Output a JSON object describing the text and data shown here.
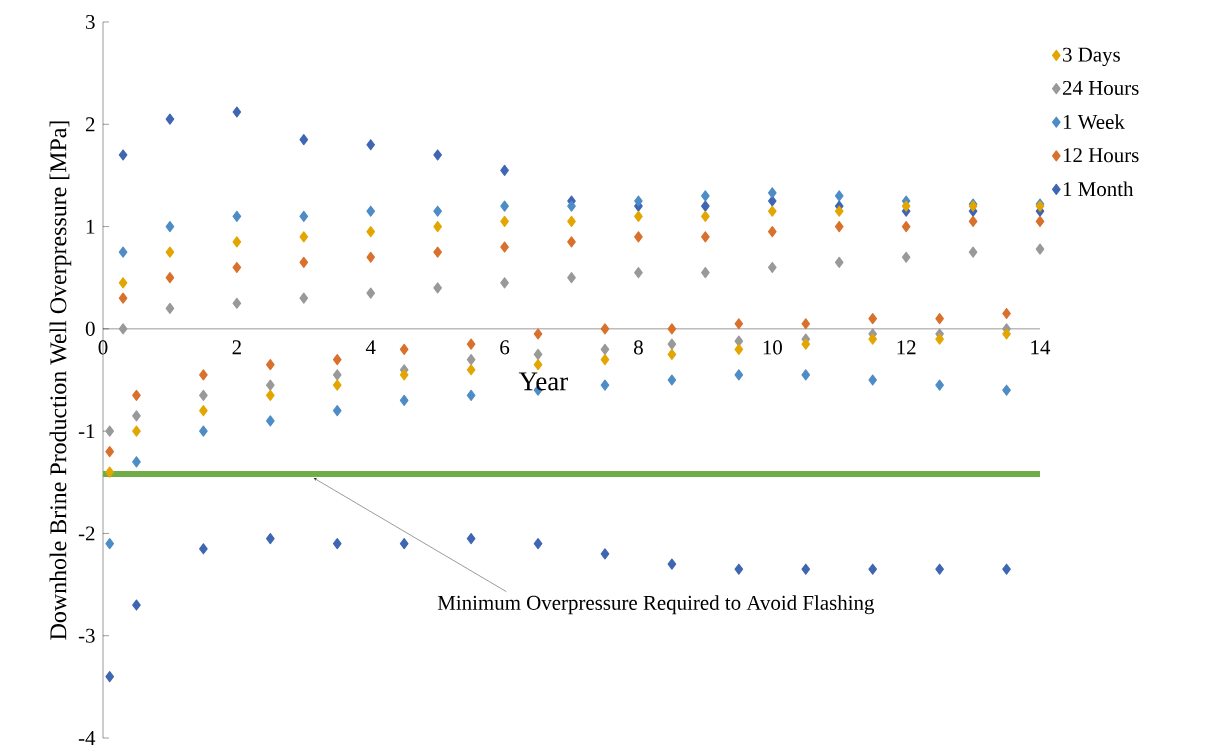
{
  "chart_data": {
    "type": "scatter",
    "xlabel": "Year",
    "ylabel": "Downhole Brine Production Well Overpressure [MPa]",
    "xlim": [
      0,
      14
    ],
    "xticks": [
      0,
      2,
      4,
      6,
      8,
      10,
      12,
      14
    ],
    "ylim": [
      -4,
      3
    ],
    "yticks": [
      -4,
      -3,
      -2,
      -1,
      0,
      1,
      2,
      3
    ],
    "grid": false,
    "legend": "right",
    "marker": "diamond",
    "series": [
      {
        "name": "3 Days",
        "color": "#e3a600",
        "x": [
          0.1,
          0.3,
          0.5,
          1,
          1.5,
          2,
          2.5,
          3,
          3.5,
          4,
          4.5,
          5,
          5.5,
          6,
          6.5,
          7,
          7.5,
          8,
          8.5,
          9,
          9.5,
          10,
          10.5,
          11,
          11.5,
          12,
          12.5,
          13,
          13.5,
          14
        ],
        "values": [
          -1.4,
          0.45,
          -1.0,
          0.75,
          -0.8,
          0.85,
          -0.65,
          0.9,
          -0.55,
          0.95,
          -0.45,
          1.0,
          -0.4,
          1.05,
          -0.35,
          1.05,
          -0.3,
          1.1,
          -0.25,
          1.1,
          -0.2,
          1.15,
          -0.15,
          1.15,
          -0.1,
          1.2,
          -0.1,
          1.2,
          -0.05,
          1.2
        ]
      },
      {
        "name": "24 Hours",
        "color": "#999999",
        "x": [
          0.1,
          0.3,
          0.5,
          1,
          1.5,
          2,
          2.5,
          3,
          3.5,
          4,
          4.5,
          5,
          5.5,
          6,
          6.5,
          7,
          7.5,
          8,
          8.5,
          9,
          9.5,
          10,
          10.5,
          11,
          11.5,
          12,
          12.5,
          13,
          13.5,
          14
        ],
        "values": [
          -1.0,
          0.0,
          -0.85,
          0.2,
          -0.65,
          0.25,
          -0.55,
          0.3,
          -0.45,
          0.35,
          -0.4,
          0.4,
          -0.3,
          0.45,
          -0.25,
          0.5,
          -0.2,
          0.55,
          -0.15,
          0.55,
          -0.12,
          0.6,
          -0.1,
          0.65,
          -0.05,
          0.7,
          -0.05,
          0.75,
          0.0,
          0.78
        ]
      },
      {
        "name": "1 Week",
        "color": "#4e8cc6",
        "x": [
          0.1,
          0.3,
          0.5,
          1,
          1.5,
          2,
          2.5,
          3,
          3.5,
          4,
          4.5,
          5,
          5.5,
          6,
          6.5,
          7,
          7.5,
          8,
          8.5,
          9,
          9.5,
          10,
          10.5,
          11,
          11.5,
          12,
          12.5,
          13,
          13.5,
          14
        ],
        "values": [
          -2.1,
          0.75,
          -1.3,
          1.0,
          -1.0,
          1.1,
          -0.9,
          1.1,
          -0.8,
          1.15,
          -0.7,
          1.15,
          -0.65,
          1.2,
          -0.6,
          1.2,
          -0.55,
          1.25,
          -0.5,
          1.3,
          -0.45,
          1.33,
          -0.45,
          1.3,
          -0.5,
          1.25,
          -0.55,
          1.22,
          -0.6,
          1.22
        ]
      },
      {
        "name": "12 Hours",
        "color": "#d9702c",
        "x": [
          0.1,
          0.3,
          0.5,
          1,
          1.5,
          2,
          2.5,
          3,
          3.5,
          4,
          4.5,
          5,
          5.5,
          6,
          6.5,
          7,
          7.5,
          8,
          8.5,
          9,
          9.5,
          10,
          10.5,
          11,
          11.5,
          12,
          12.5,
          13,
          13.5,
          14
        ],
        "values": [
          -1.2,
          0.3,
          -0.65,
          0.5,
          -0.45,
          0.6,
          -0.35,
          0.65,
          -0.3,
          0.7,
          -0.2,
          0.75,
          -0.15,
          0.8,
          -0.05,
          0.85,
          0.0,
          0.9,
          0.0,
          0.9,
          0.05,
          0.95,
          0.05,
          1.0,
          0.1,
          1.0,
          0.1,
          1.05,
          0.15,
          1.05
        ]
      },
      {
        "name": "1 Month",
        "color": "#3e66b2",
        "x": [
          0.1,
          0.3,
          0.5,
          1,
          1.5,
          2,
          2.5,
          3,
          3.5,
          4,
          4.5,
          5,
          5.5,
          6,
          6.5,
          7,
          7.5,
          8,
          8.5,
          9,
          9.5,
          10,
          10.5,
          11,
          11.5,
          12,
          12.5,
          13,
          13.5,
          14
        ],
        "values": [
          -3.4,
          1.7,
          -2.7,
          2.05,
          -2.15,
          2.12,
          -2.05,
          1.85,
          -2.1,
          1.8,
          -2.1,
          1.7,
          -2.05,
          1.55,
          -2.1,
          1.25,
          -2.2,
          1.2,
          -2.3,
          1.2,
          -2.35,
          1.25,
          -2.35,
          1.2,
          -2.35,
          1.15,
          -2.35,
          1.15,
          -2.35,
          1.15
        ]
      }
    ],
    "ref_lines": [
      {
        "axis": "y",
        "value": -1.42,
        "label": "Minimum Overpressure Required to Avoid Flashing",
        "color": "#70ad47"
      }
    ]
  }
}
